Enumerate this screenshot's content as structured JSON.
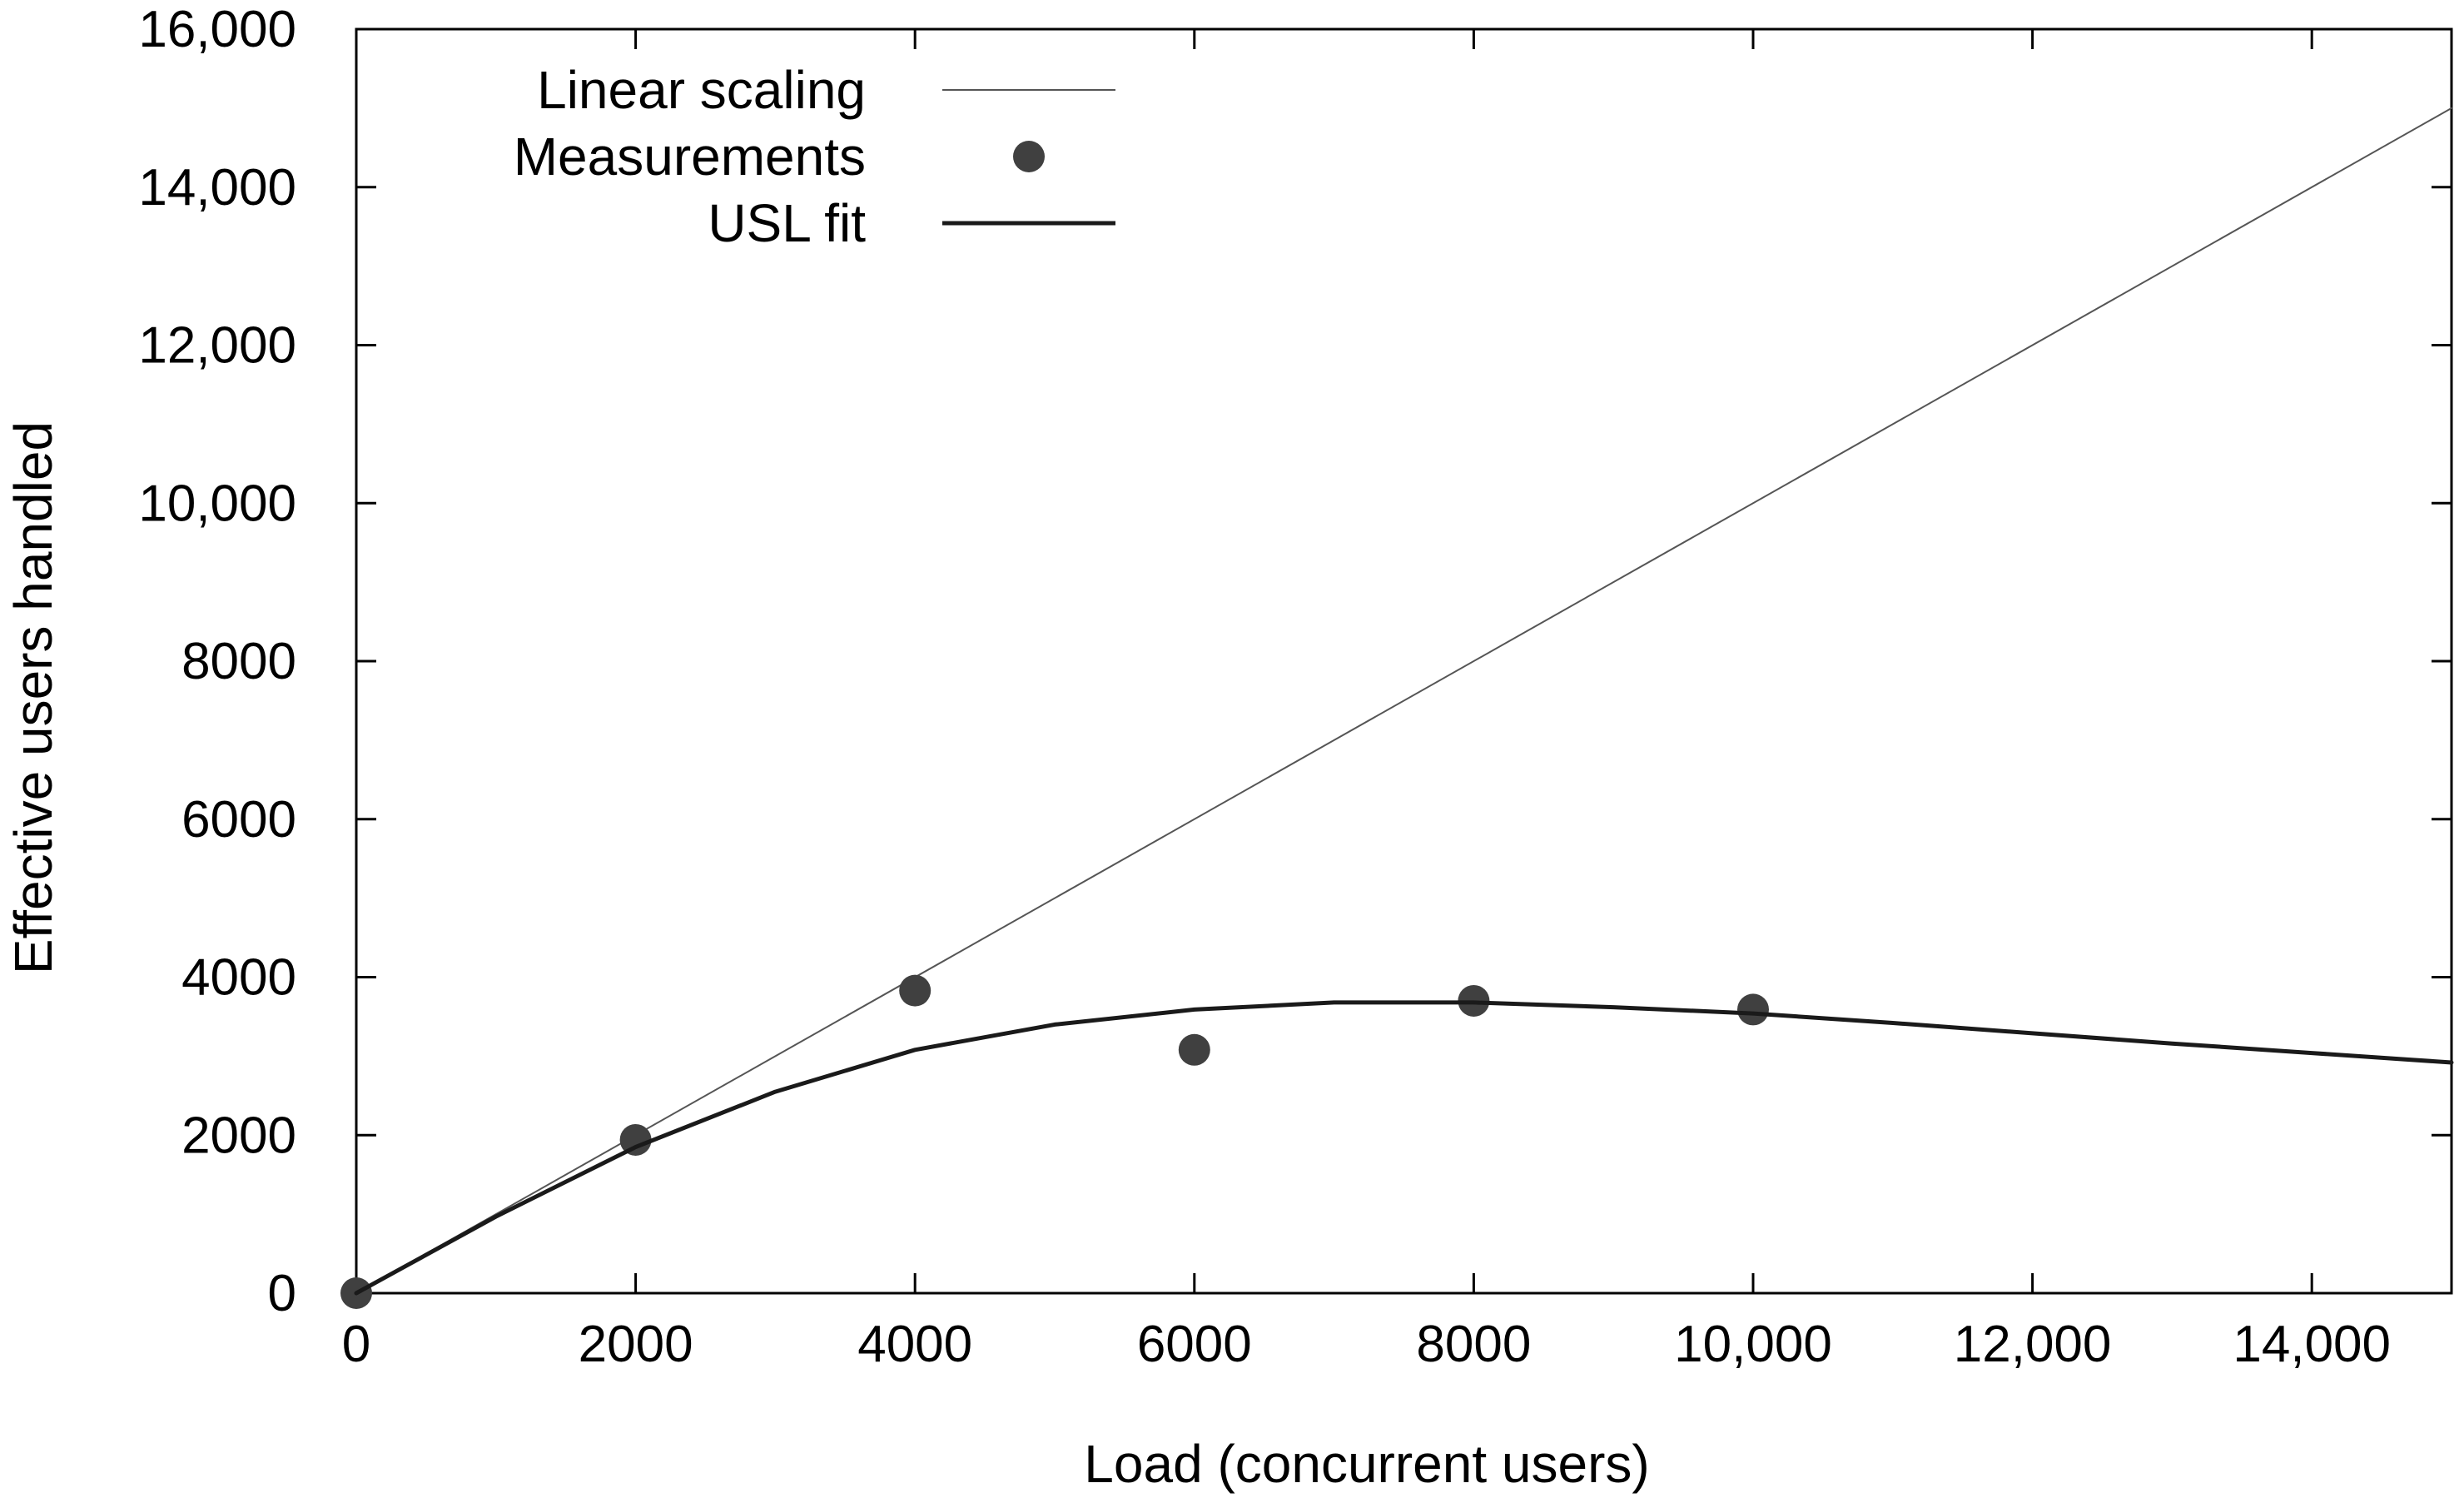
{
  "chart_data": {
    "type": "scatter",
    "title": "",
    "xlabel": "Load (concurrent users)",
    "ylabel": "Effective users handled",
    "xlim": [
      0,
      15000
    ],
    "ylim": [
      0,
      16000
    ],
    "grid": false,
    "legend_position": "top-left",
    "x_ticks": [
      0,
      2000,
      4000,
      6000,
      8000,
      10000,
      12000,
      14000
    ],
    "x_tick_labels": [
      "0",
      "2000",
      "4000",
      "6000",
      "8000",
      "10,000",
      "12,000",
      "14,000"
    ],
    "y_ticks": [
      0,
      2000,
      4000,
      6000,
      8000,
      10000,
      12000,
      14000,
      16000
    ],
    "y_tick_labels": [
      "0",
      "2000",
      "4000",
      "6000",
      "8000",
      "10,000",
      "12,000",
      "14,000",
      "16,000"
    ],
    "series": [
      {
        "name": "Linear scaling",
        "kind": "line",
        "style": "thin",
        "color": "#555555",
        "x": [
          0,
          15000
        ],
        "y": [
          0,
          15000
        ]
      },
      {
        "name": "Measurements",
        "kind": "points",
        "color": "#404040",
        "x": [
          0,
          2000,
          4000,
          6000,
          8000,
          10000
        ],
        "y": [
          0,
          1940,
          3830,
          3080,
          3700,
          3590
        ]
      },
      {
        "name": "USL fit",
        "kind": "line",
        "style": "thick",
        "color": "#1a1a1a",
        "x": [
          0,
          1000,
          2000,
          3000,
          4000,
          5000,
          6000,
          7000,
          8000,
          9000,
          10000,
          11000,
          12000,
          13000,
          14000,
          15000
        ],
        "y": [
          0,
          970,
          1850,
          2550,
          3080,
          3400,
          3590,
          3680,
          3680,
          3620,
          3540,
          3420,
          3290,
          3160,
          3040,
          2920
        ]
      }
    ]
  }
}
